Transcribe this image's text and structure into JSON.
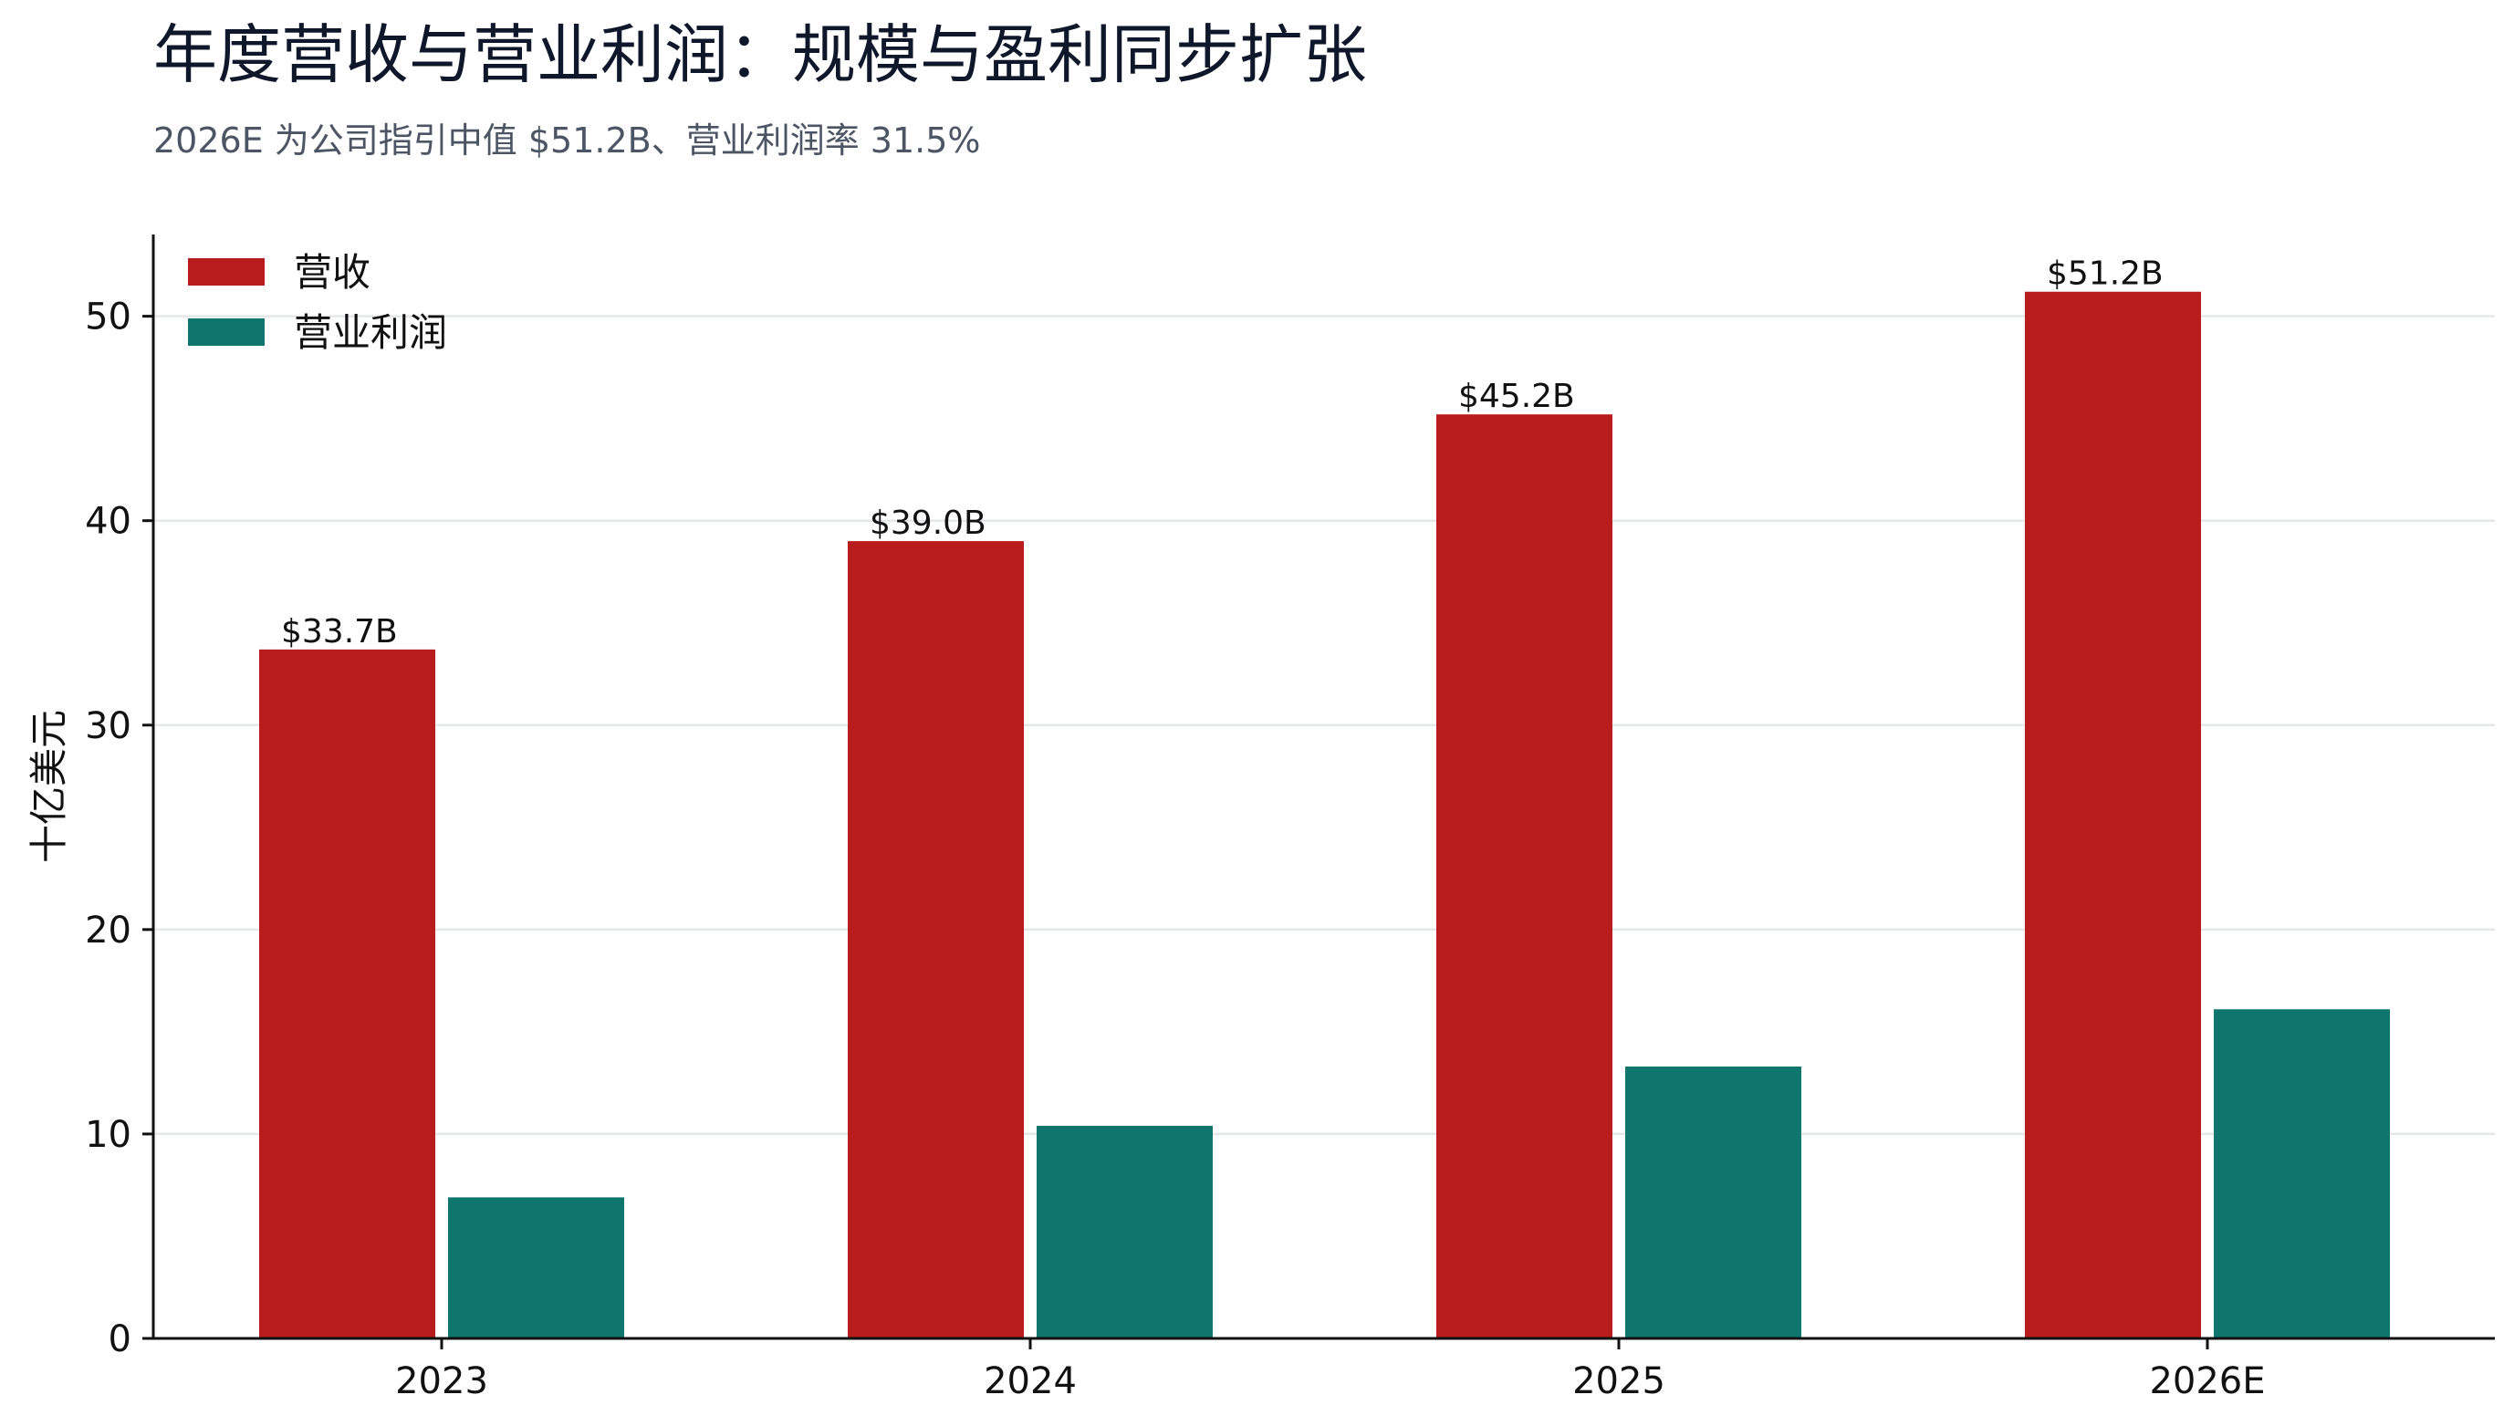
{
  "header": {
    "title": "年度营收与营业利润：规模与盈利同步扩张",
    "subtitle": "2026E 为公司指引中值 $51.2B、营业利润率 31.5%"
  },
  "chart_data": {
    "type": "bar",
    "categories": [
      "2023",
      "2024",
      "2025",
      "2026E"
    ],
    "series": [
      {
        "name": "营收",
        "values": [
          33.7,
          39.0,
          45.2,
          51.2
        ],
        "color": "#b91c1c",
        "labels": [
          "$33.7B",
          "$39.0B",
          "$45.2B",
          "$51.2B"
        ]
      },
      {
        "name": "营业利润",
        "values": [
          6.9,
          10.4,
          13.3,
          16.1
        ],
        "color": "#0f766e"
      }
    ],
    "ylabel": "十亿美元",
    "xlabel": "",
    "ylim": [
      0,
      54
    ],
    "yticks": [
      0,
      10,
      20,
      30,
      40,
      50
    ],
    "grid": "horizontal",
    "legend_position": "top-left"
  }
}
